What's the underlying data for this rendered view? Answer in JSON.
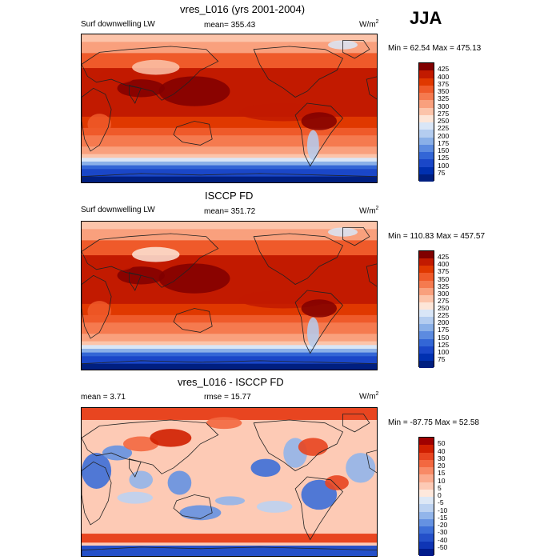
{
  "season": "JJA",
  "panels": [
    {
      "title": "vres_L016 (yrs 2001-2004)",
      "left_label": "Surf downwelling LW",
      "center_label": "mean= 355.43",
      "units_base": "W/m",
      "units_sup": "2",
      "minmax": "Min =  62.54 Max = 475.13",
      "colorbar_labels": [
        "425",
        "400",
        "375",
        "350",
        "325",
        "300",
        "275",
        "250",
        "225",
        "200",
        "175",
        "150",
        "125",
        "100",
        "75"
      ]
    },
    {
      "title": "ISCCP FD",
      "left_label": "Surf downwelling LW",
      "center_label": "mean= 351.72",
      "units_base": "W/m",
      "units_sup": "2",
      "minmax": "Min = 110.83 Max = 457.57",
      "colorbar_labels": [
        "425",
        "400",
        "375",
        "350",
        "325",
        "300",
        "275",
        "250",
        "225",
        "200",
        "175",
        "150",
        "125",
        "100",
        "75"
      ]
    },
    {
      "title": "vres_L016 - ISCCP FD",
      "left_label": "mean =   3.71",
      "center_label": "rmse =  15.77",
      "units_base": "W/m",
      "units_sup": "2",
      "minmax": "Min = -87.75 Max =  52.58",
      "colorbar_labels": [
        "50",
        "40",
        "30",
        "20",
        "15",
        "10",
        "5",
        "0",
        "-5",
        "-10",
        "-15",
        "-20",
        "-30",
        "-40",
        "-50"
      ]
    }
  ],
  "colors": {
    "abs_scale": [
      "#800000",
      "#c21a00",
      "#e03800",
      "#ef5a2a",
      "#f57a4f",
      "#f9a07d",
      "#fcc4aa",
      "#fde6d8",
      "#d9e6f7",
      "#b4cdf0",
      "#8ab0e8",
      "#5c8be0",
      "#3366d6",
      "#1a47c8",
      "#0030b0",
      "#001f80"
    ],
    "diff_scale": [
      "#a00000",
      "#d01f00",
      "#e84520",
      "#f36840",
      "#f88a66",
      "#fbab8e",
      "#fdcab5",
      "#fee8dc",
      "#dde8f6",
      "#bcd2f1",
      "#92b5ea",
      "#6592e2",
      "#3d6fd8",
      "#2450c9",
      "#0f35b5",
      "#001b8c"
    ]
  },
  "chart_data": [
    {
      "type": "heatmap",
      "title": "vres_L016 (yrs 2001-2004)",
      "variable": "Surf downwelling LW",
      "units": "W/m2",
      "mean": 355.43,
      "min": 62.54,
      "max": 475.13,
      "levels": [
        75,
        100,
        125,
        150,
        175,
        200,
        225,
        250,
        275,
        300,
        325,
        350,
        375,
        400,
        425
      ]
    },
    {
      "type": "heatmap",
      "title": "ISCCP FD",
      "variable": "Surf downwelling LW",
      "units": "W/m2",
      "mean": 351.72,
      "min": 110.83,
      "max": 457.57,
      "levels": [
        75,
        100,
        125,
        150,
        175,
        200,
        225,
        250,
        275,
        300,
        325,
        350,
        375,
        400,
        425
      ]
    },
    {
      "type": "heatmap",
      "title": "vres_L016 - ISCCP FD",
      "units": "W/m2",
      "mean": 3.71,
      "rmse": 15.77,
      "min": -87.75,
      "max": 52.58,
      "levels": [
        -50,
        -40,
        -30,
        -20,
        -15,
        -10,
        -5,
        0,
        5,
        10,
        15,
        20,
        30,
        40,
        50
      ]
    }
  ]
}
